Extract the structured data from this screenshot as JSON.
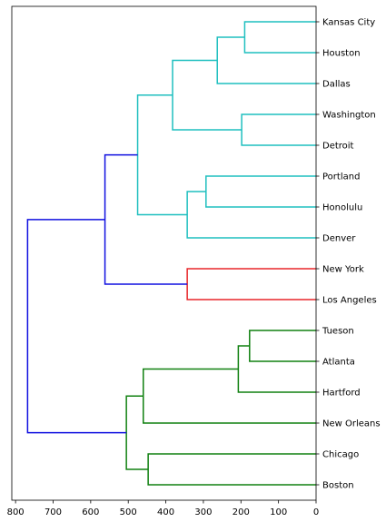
{
  "chart_data": {
    "type": "dendrogram",
    "title": "",
    "xlabel": "",
    "ylabel": "",
    "orientation": "left",
    "xlim": [
      810,
      0
    ],
    "x_ticks": [
      800,
      700,
      600,
      500,
      400,
      300,
      200,
      100,
      0
    ],
    "grid": false,
    "leaves": [
      "Kansas City",
      "Houston",
      "Dallas",
      "Washington",
      "Detroit",
      "Portland",
      "Honolulu",
      "Denver",
      "New York",
      "Los Angeles",
      "Tueson",
      "Atlanta",
      "Hartford",
      "New Orleans",
      "Chicago",
      "Boston"
    ],
    "colors": {
      "cluster_a": "#1fbfbf",
      "cluster_b": "#e8262a",
      "cluster_c": "#108010",
      "above_threshold": "#1010e0"
    },
    "merges": [
      {
        "id": "m1",
        "left": "Kansas City",
        "right": "Houston",
        "height": 190,
        "color": "cluster_a"
      },
      {
        "id": "m2",
        "left": "m1",
        "right": "Dallas",
        "height": 263,
        "color": "cluster_a"
      },
      {
        "id": "m3",
        "left": "Washington",
        "right": "Detroit",
        "height": 198,
        "color": "cluster_a"
      },
      {
        "id": "m4",
        "left": "m2",
        "right": "m3",
        "height": 382,
        "color": "cluster_a"
      },
      {
        "id": "m5",
        "left": "Portland",
        "right": "Honolulu",
        "height": 293,
        "color": "cluster_a"
      },
      {
        "id": "m6",
        "left": "m5",
        "right": "Denver",
        "height": 343,
        "color": "cluster_a"
      },
      {
        "id": "m7",
        "left": "m4",
        "right": "m6",
        "height": 475,
        "color": "cluster_a"
      },
      {
        "id": "m8",
        "left": "New York",
        "right": "Los Angeles",
        "height": 343,
        "color": "cluster_b"
      },
      {
        "id": "m9",
        "left": "m7",
        "right": "m8",
        "height": 562,
        "color": "above_threshold"
      },
      {
        "id": "m10",
        "left": "Tueson",
        "right": "Atlanta",
        "height": 177,
        "color": "cluster_c"
      },
      {
        "id": "m11",
        "left": "m10",
        "right": "Hartford",
        "height": 207,
        "color": "cluster_c"
      },
      {
        "id": "m12",
        "left": "m11",
        "right": "New Orleans",
        "height": 460,
        "color": "cluster_c"
      },
      {
        "id": "m13",
        "left": "Chicago",
        "right": "Boston",
        "height": 447,
        "color": "cluster_c"
      },
      {
        "id": "m14",
        "left": "m12",
        "right": "m13",
        "height": 505,
        "color": "cluster_c"
      },
      {
        "id": "m15",
        "left": "m9",
        "right": "m14",
        "height": 768,
        "color": "above_threshold"
      }
    ]
  }
}
